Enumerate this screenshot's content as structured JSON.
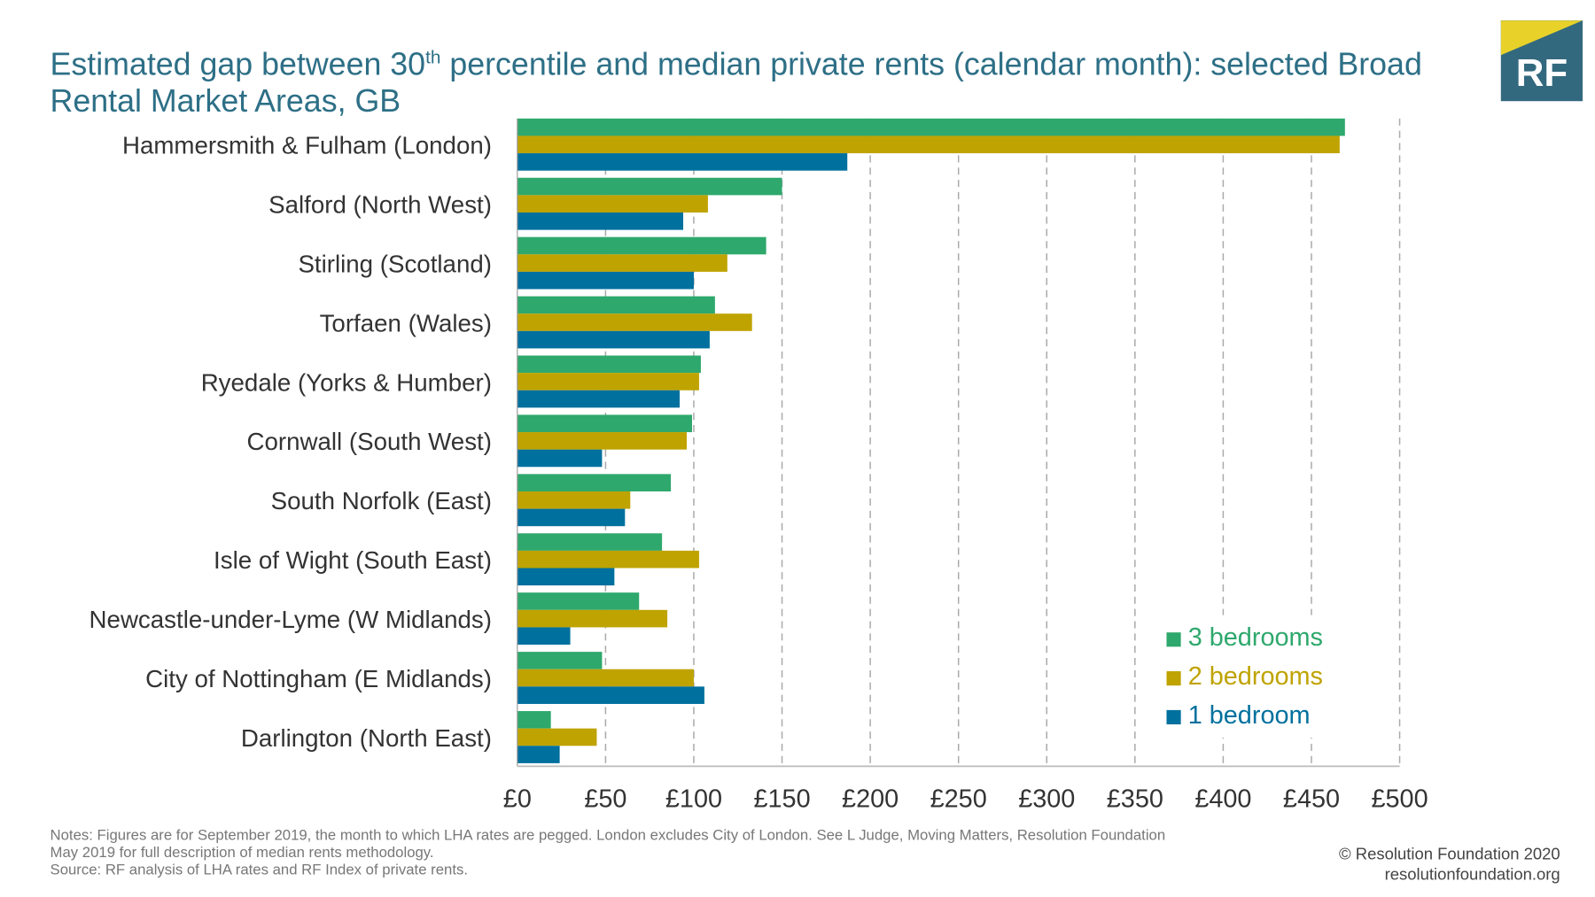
{
  "title_pre": "Estimated gap between 30",
  "title_sup": "th",
  "title_post": " percentile and median private rents (calendar month): selected Broad Rental Market Areas, GB",
  "logo_text": "RF",
  "notes": [
    "Notes: Figures are for September 2019, the month to which LHA rates are pegged. London excludes City of London. See L Judge, Moving Matters, Resolution Foundation",
    "May 2019 for full description of median rents methodology.",
    "Source: RF analysis of LHA rates and RF Index of private rents."
  ],
  "credit": [
    "© Resolution Foundation 2020",
    "resolutionfoundation.org"
  ],
  "chart_data": {
    "type": "bar",
    "orientation": "horizontal",
    "categories": [
      "Hammersmith &  Fulham (London)",
      "Salford (North West)",
      "Stirling (Scotland)",
      "Torfaen (Wales)",
      "Ryedale (Yorks & Humber)",
      "Cornwall (South West)",
      "South Norfolk (East)",
      "Isle of Wight (South East)",
      "Newcastle-under-Lyme (W Midlands)",
      "City of Nottingham (E Midlands)",
      "Darlington (North East)"
    ],
    "series": [
      {
        "name": "3 bedrooms",
        "color": "#2ea86c",
        "values": [
          469,
          150,
          141,
          112,
          104,
          99,
          87,
          82,
          69,
          48,
          19
        ]
      },
      {
        "name": "2 bedrooms",
        "color": "#bfa300",
        "values": [
          466,
          108,
          119,
          133,
          103,
          96,
          64,
          103,
          85,
          100,
          45
        ]
      },
      {
        "name": "1 bedroom",
        "color": "#00709e",
        "values": [
          187,
          94,
          100,
          109,
          92,
          48,
          61,
          55,
          30,
          106,
          24
        ]
      }
    ],
    "xlim": [
      0,
      500
    ],
    "xticks": [
      0,
      50,
      100,
      150,
      200,
      250,
      300,
      350,
      400,
      450,
      500
    ],
    "xtick_labels": [
      "£0",
      "£50",
      "£100",
      "£150",
      "£200",
      "£250",
      "£300",
      "£350",
      "£400",
      "£450",
      "£500"
    ],
    "grid": "vertical dashed",
    "legend": "bottom-right"
  }
}
